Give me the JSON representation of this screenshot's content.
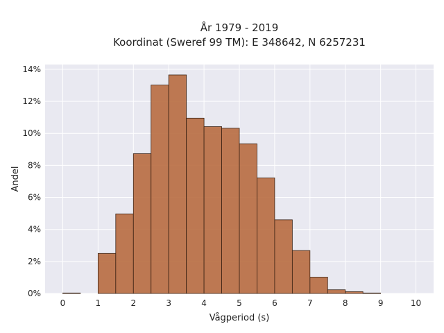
{
  "chart_data": {
    "type": "bar",
    "title_line1": "År 1979 - 2019",
    "title_line2": "Koordinat (Sweref 99 TM): E 348642, N 6257231",
    "xlabel": "Vågperiod (s)",
    "ylabel": "Andel",
    "xlim": [
      -0.5,
      10.5
    ],
    "ylim": [
      0,
      0.143
    ],
    "xticks": [
      0,
      1,
      2,
      3,
      4,
      5,
      6,
      7,
      8,
      9,
      10
    ],
    "xtick_labels": [
      "0",
      "1",
      "2",
      "3",
      "4",
      "5",
      "6",
      "7",
      "8",
      "9",
      "10"
    ],
    "yticks": [
      0,
      0.02,
      0.04,
      0.06,
      0.08,
      0.1,
      0.12,
      0.14
    ],
    "ytick_labels": [
      "0%",
      "2%",
      "4%",
      "6%",
      "8%",
      "10%",
      "12%",
      "14%"
    ],
    "bin_width": 0.5,
    "bin_starts": [
      0,
      1,
      1.5,
      2,
      2.5,
      3,
      3.5,
      4,
      4.5,
      5,
      5.5,
      6,
      6.5,
      7,
      7.5,
      8,
      8.5
    ],
    "values": [
      0.0003,
      0.025,
      0.0497,
      0.0873,
      0.1302,
      0.1365,
      0.1095,
      0.1042,
      0.1032,
      0.0935,
      0.0722,
      0.046,
      0.0268,
      0.0102,
      0.0023,
      0.0011,
      0.0003
    ],
    "grid": true
  },
  "colors": {
    "plot_background": "#e9e9f1",
    "bar_fill": "#b86b40",
    "bar_edge": "#3a2214",
    "grid": "#ffffff"
  }
}
